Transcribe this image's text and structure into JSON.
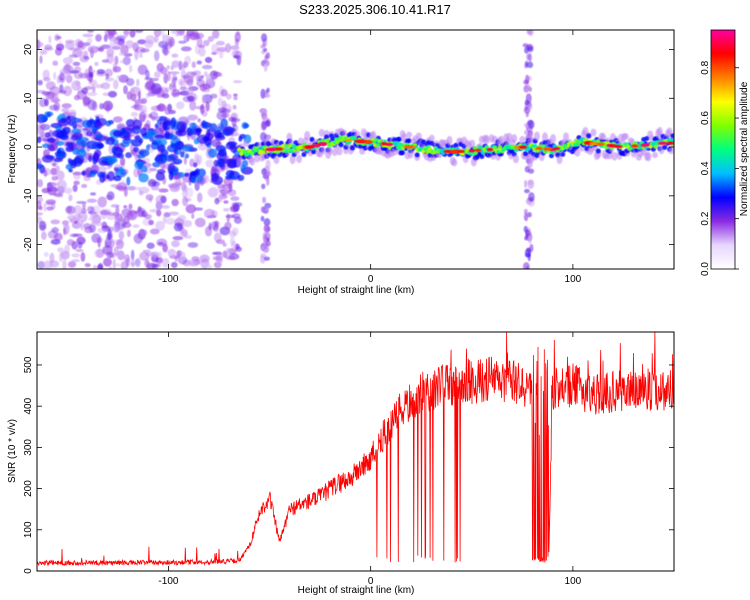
{
  "figure": {
    "title": "S233.2025.306.10.41.R17"
  },
  "chart_data": [
    {
      "type": "heatmap",
      "xlabel": "Height of straight line (km)",
      "ylabel": "Frequency (Hz)",
      "xlim": [
        -165,
        150
      ],
      "ylim": [
        -25,
        24
      ],
      "xticks": [
        -100,
        0,
        100
      ],
      "yticks": [
        -20,
        -10,
        0,
        10,
        20
      ],
      "grid": false,
      "colorbar": {
        "label": "Normalized spectral amplitude",
        "range": [
          0,
          0.95
        ],
        "ticks": [
          0.0,
          0.2,
          0.4,
          0.6,
          0.8
        ],
        "colormap": [
          "#ffffff",
          "#e8d6ff",
          "#8a2be2",
          "#0000ff",
          "#00c0ff",
          "#00ff80",
          "#80ff00",
          "#ffff00",
          "#ff8000",
          "#ff0000",
          "#ff00a0"
        ]
      },
      "ridge": [
        {
          "x": -160,
          "y": 1.0
        },
        {
          "x": -140,
          "y": 0.0
        },
        {
          "x": -120,
          "y": -1.0
        },
        {
          "x": -100,
          "y": 0.0
        },
        {
          "x": -80,
          "y": -1.0
        },
        {
          "x": -60,
          "y": -1.0
        },
        {
          "x": -50,
          "y": -0.5
        },
        {
          "x": -30,
          "y": 0.0
        },
        {
          "x": -15,
          "y": 1.5
        },
        {
          "x": 0,
          "y": 1.0
        },
        {
          "x": 20,
          "y": 0.0
        },
        {
          "x": 40,
          "y": -1.0
        },
        {
          "x": 60,
          "y": -0.5
        },
        {
          "x": 75,
          "y": 0.0
        },
        {
          "x": 90,
          "y": -0.5
        },
        {
          "x": 105,
          "y": 1.0
        },
        {
          "x": 125,
          "y": 0.0
        },
        {
          "x": 145,
          "y": 0.8
        }
      ],
      "vertical_bands": [
        -52,
        78
      ]
    },
    {
      "type": "line",
      "xlabel": "Height of straight line (km)",
      "ylabel": "SNR (10 * v/v)",
      "xlim": [
        -165,
        150
      ],
      "ylim": [
        0,
        580
      ],
      "xticks": [
        -100,
        0,
        100
      ],
      "yticks": [
        0,
        100,
        200,
        300,
        400,
        500
      ],
      "grid": false,
      "series": [
        {
          "color": "#ff0000",
          "x": [
            -165,
            -140,
            -120,
            -100,
            -80,
            -65,
            -60,
            -55,
            -50,
            -45,
            -40,
            -35,
            -30,
            -25,
            -20,
            -15,
            -10,
            -5,
            0,
            5,
            10,
            15,
            20,
            25,
            30,
            35,
            40,
            45,
            50,
            55,
            60,
            65,
            70,
            75,
            78,
            80,
            85,
            88,
            90,
            95,
            100,
            110,
            120,
            130,
            140,
            150
          ],
          "y": [
            20,
            20,
            20,
            21,
            22,
            25,
            60,
            140,
            180,
            70,
            150,
            160,
            170,
            180,
            200,
            215,
            225,
            250,
            270,
            320,
            350,
            390,
            410,
            430,
            440,
            450,
            450,
            455,
            460,
            460,
            470,
            455,
            460,
            450,
            440,
            440,
            20,
            20,
            440,
            445,
            450,
            430,
            435,
            440,
            440,
            440
          ]
        }
      ]
    }
  ]
}
